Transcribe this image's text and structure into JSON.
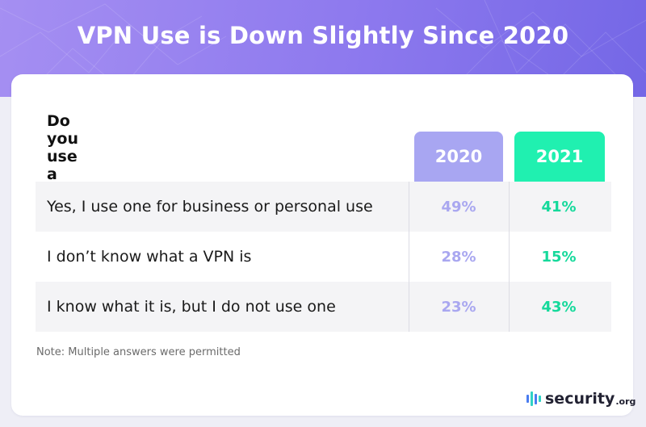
{
  "title": "VPN Use is Down Slightly Since 2020",
  "colors": {
    "col_2020": "#a8a6f2",
    "col_2021": "#20f0b0",
    "val_2020": "#a9a7f0",
    "val_2021": "#15d99b"
  },
  "chart_data": {
    "type": "table",
    "question": "Do you use a VPN?",
    "columns": [
      "2020",
      "2021"
    ],
    "rows": [
      {
        "label": "Yes, I use one for business or personal use",
        "values": [
          "49%",
          "41%"
        ]
      },
      {
        "label": "I don’t know what a VPN is",
        "values": [
          "28%",
          "15%"
        ]
      },
      {
        "label": "I know what it is, but I do not use one",
        "values": [
          "23%",
          "43%"
        ]
      }
    ]
  },
  "note": "Note: Multiple answers were permitted",
  "logo": {
    "icon": "security-bars-icon",
    "name": "security",
    "suffix": ".org"
  }
}
